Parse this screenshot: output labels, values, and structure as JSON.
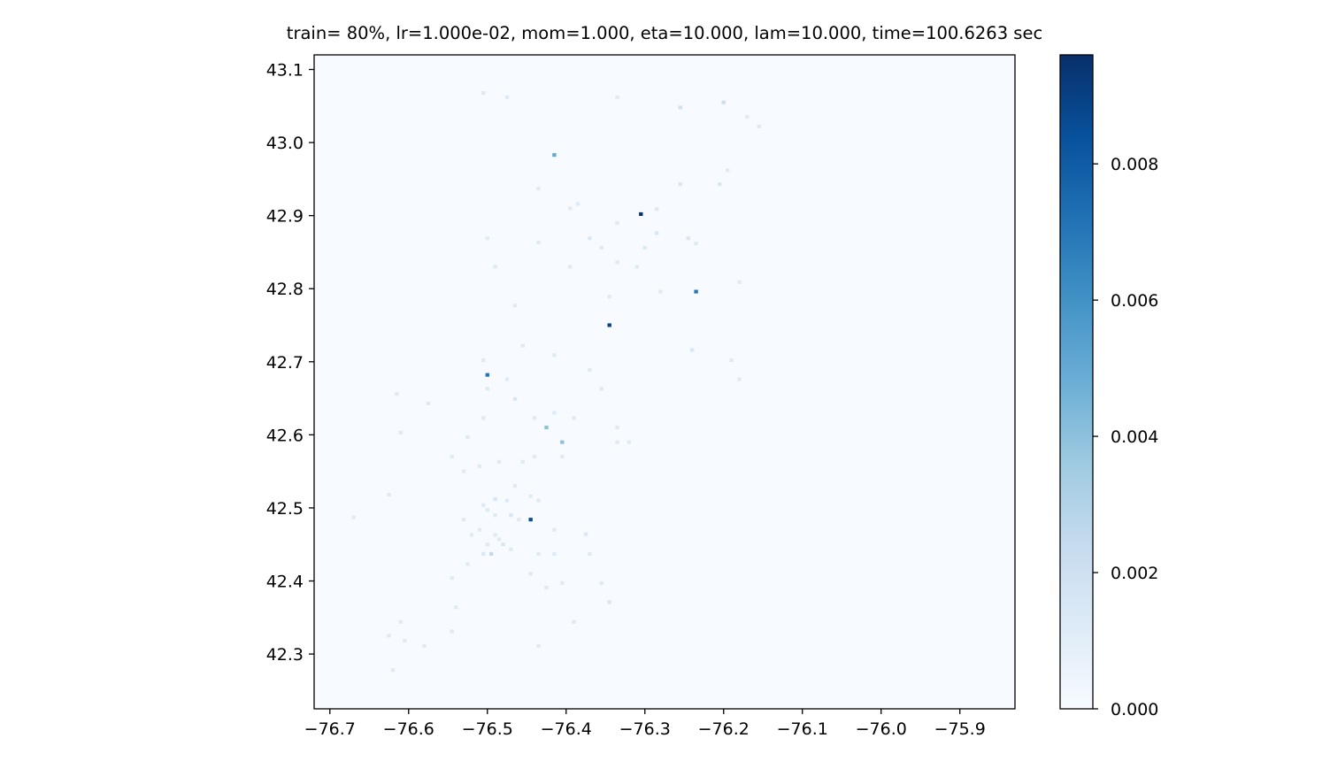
{
  "chart_data": {
    "type": "heatmap",
    "title": "train= 80%, lr=1.000e-02, mom=1.000, eta=10.000, lam=10.000, time=100.6263 sec",
    "xlabel": "",
    "ylabel": "",
    "xlim": [
      -76.72,
      -75.83
    ],
    "ylim": [
      42.225,
      43.12
    ],
    "xticks": [
      -76.7,
      -76.6,
      -76.5,
      -76.4,
      -76.3,
      -76.2,
      -76.1,
      -76.0,
      -75.9
    ],
    "xtick_labels": [
      "−76.7",
      "−76.6",
      "−76.5",
      "−76.4",
      "−76.3",
      "−76.2",
      "−76.1",
      "−76.0",
      "−75.9"
    ],
    "yticks": [
      42.3,
      42.4,
      42.5,
      42.6,
      42.7,
      42.8,
      42.9,
      43.0,
      43.1
    ],
    "ytick_labels": [
      "42.3",
      "42.4",
      "42.5",
      "42.6",
      "42.7",
      "42.8",
      "42.9",
      "43.0",
      "43.1"
    ],
    "cell_size": 0.005,
    "colormap": "Blues",
    "colors": [
      "#f7fbff",
      "#deebf7",
      "#c6dbef",
      "#9ecae1",
      "#6baed6",
      "#4292c6",
      "#2171b5",
      "#08519c",
      "#08306b"
    ],
    "background_color": "#f7fbff",
    "colorbar": {
      "min": 0,
      "max": 0.0096,
      "ticks": [
        0.0,
        0.002,
        0.004,
        0.006,
        0.008
      ],
      "tick_labels": [
        "0.000",
        "0.002",
        "0.004",
        "0.006",
        "0.008"
      ]
    },
    "cells": [
      [
        -76.505,
        43.068,
        0.0012
      ],
      [
        -76.475,
        43.062,
        0.0012
      ],
      [
        -76.335,
        43.062,
        0.0012
      ],
      [
        -76.255,
        43.048,
        0.002
      ],
      [
        -76.2,
        43.055,
        0.0022
      ],
      [
        -76.17,
        43.035,
        0.0012
      ],
      [
        -76.155,
        43.022,
        0.0012
      ],
      [
        -76.415,
        42.983,
        0.005
      ],
      [
        -76.195,
        42.962,
        0.0012
      ],
      [
        -76.435,
        42.937,
        0.0012
      ],
      [
        -76.255,
        42.943,
        0.0015
      ],
      [
        -76.205,
        42.943,
        0.0015
      ],
      [
        -76.395,
        42.91,
        0.0012
      ],
      [
        -76.385,
        42.916,
        0.0012
      ],
      [
        -76.305,
        42.902,
        0.0095
      ],
      [
        -76.285,
        42.909,
        0.0012
      ],
      [
        -76.335,
        42.89,
        0.0012
      ],
      [
        -76.285,
        42.876,
        0.0015
      ],
      [
        -76.5,
        42.869,
        0.0012
      ],
      [
        -76.435,
        42.863,
        0.0012
      ],
      [
        -76.37,
        42.869,
        0.0015
      ],
      [
        -76.355,
        42.856,
        0.0012
      ],
      [
        -76.3,
        42.856,
        0.0012
      ],
      [
        -76.245,
        42.869,
        0.0015
      ],
      [
        -76.235,
        42.862,
        0.0012
      ],
      [
        -76.49,
        42.83,
        0.0012
      ],
      [
        -76.395,
        42.83,
        0.0012
      ],
      [
        -76.335,
        42.836,
        0.0012
      ],
      [
        -76.31,
        42.83,
        0.0012
      ],
      [
        -76.28,
        42.796,
        0.0012
      ],
      [
        -76.235,
        42.796,
        0.007
      ],
      [
        -76.18,
        42.809,
        0.0012
      ],
      [
        -76.345,
        42.789,
        0.0012
      ],
      [
        -76.465,
        42.777,
        0.0012
      ],
      [
        -76.345,
        42.75,
        0.009
      ],
      [
        -76.455,
        42.722,
        0.0012
      ],
      [
        -76.415,
        42.709,
        0.0012
      ],
      [
        -76.24,
        42.716,
        0.0015
      ],
      [
        -76.505,
        42.702,
        0.0012
      ],
      [
        -76.37,
        42.689,
        0.0012
      ],
      [
        -76.19,
        42.702,
        0.0012
      ],
      [
        -76.5,
        42.682,
        0.007
      ],
      [
        -76.475,
        42.676,
        0.0012
      ],
      [
        -76.18,
        42.676,
        0.0012
      ],
      [
        -76.5,
        42.663,
        0.0012
      ],
      [
        -76.615,
        42.656,
        0.0012
      ],
      [
        -76.355,
        42.663,
        0.0012
      ],
      [
        -76.465,
        42.649,
        0.0015
      ],
      [
        -76.575,
        42.643,
        0.0012
      ],
      [
        -76.415,
        42.63,
        0.0012
      ],
      [
        -76.39,
        42.623,
        0.0012
      ],
      [
        -76.505,
        42.623,
        0.0012
      ],
      [
        -76.44,
        42.623,
        0.0012
      ],
      [
        -76.425,
        42.61,
        0.004
      ],
      [
        -76.335,
        42.61,
        0.0012
      ],
      [
        -76.61,
        42.603,
        0.0012
      ],
      [
        -76.525,
        42.597,
        0.0012
      ],
      [
        -76.405,
        42.59,
        0.004
      ],
      [
        -76.335,
        42.59,
        0.0012
      ],
      [
        -76.32,
        42.59,
        0.0012
      ],
      [
        -76.545,
        42.57,
        0.0012
      ],
      [
        -76.485,
        42.563,
        0.0012
      ],
      [
        -76.44,
        42.57,
        0.0012
      ],
      [
        -76.405,
        42.57,
        0.0012
      ],
      [
        -76.51,
        42.557,
        0.0012
      ],
      [
        -76.455,
        42.563,
        0.0012
      ],
      [
        -76.53,
        42.55,
        0.0012
      ],
      [
        -76.465,
        42.53,
        0.0012
      ],
      [
        -76.625,
        42.518,
        0.0012
      ],
      [
        -76.49,
        42.512,
        0.0015
      ],
      [
        -76.505,
        42.504,
        0.0012
      ],
      [
        -76.475,
        42.51,
        0.0012
      ],
      [
        -76.445,
        42.516,
        0.0012
      ],
      [
        -76.435,
        42.51,
        0.0012
      ],
      [
        -76.67,
        42.487,
        0.0012
      ],
      [
        -76.53,
        42.484,
        0.0012
      ],
      [
        -76.49,
        42.49,
        0.0012
      ],
      [
        -76.47,
        42.49,
        0.0015
      ],
      [
        -76.46,
        42.484,
        0.0012
      ],
      [
        -76.445,
        42.484,
        0.0085
      ],
      [
        -76.5,
        42.497,
        0.0012
      ],
      [
        -76.51,
        42.47,
        0.0012
      ],
      [
        -76.415,
        42.47,
        0.0012
      ],
      [
        -76.375,
        42.464,
        0.0015
      ],
      [
        -76.52,
        42.463,
        0.0012
      ],
      [
        -76.49,
        42.463,
        0.0012
      ],
      [
        -76.485,
        42.457,
        0.0012
      ],
      [
        -76.48,
        42.45,
        0.0015
      ],
      [
        -76.5,
        42.45,
        0.0012
      ],
      [
        -76.47,
        42.443,
        0.0012
      ],
      [
        -76.435,
        42.437,
        0.0012
      ],
      [
        -76.505,
        42.437,
        0.0015
      ],
      [
        -76.495,
        42.437,
        0.0025
      ],
      [
        -76.415,
        42.437,
        0.0012
      ],
      [
        -76.37,
        42.437,
        0.0012
      ],
      [
        -76.525,
        42.423,
        0.0012
      ],
      [
        -76.445,
        42.41,
        0.0012
      ],
      [
        -76.545,
        42.404,
        0.0012
      ],
      [
        -76.405,
        42.397,
        0.0012
      ],
      [
        -76.425,
        42.391,
        0.0012
      ],
      [
        -76.355,
        42.397,
        0.0012
      ],
      [
        -76.345,
        42.371,
        0.0015
      ],
      [
        -76.54,
        42.364,
        0.0012
      ],
      [
        -76.39,
        42.344,
        0.0012
      ],
      [
        -76.61,
        42.344,
        0.0012
      ],
      [
        -76.545,
        42.331,
        0.0012
      ],
      [
        -76.625,
        42.325,
        0.0012
      ],
      [
        -76.605,
        42.318,
        0.0012
      ],
      [
        -76.58,
        42.311,
        0.0012
      ],
      [
        -76.435,
        42.311,
        0.0012
      ],
      [
        -76.62,
        42.278,
        0.0012
      ]
    ]
  }
}
